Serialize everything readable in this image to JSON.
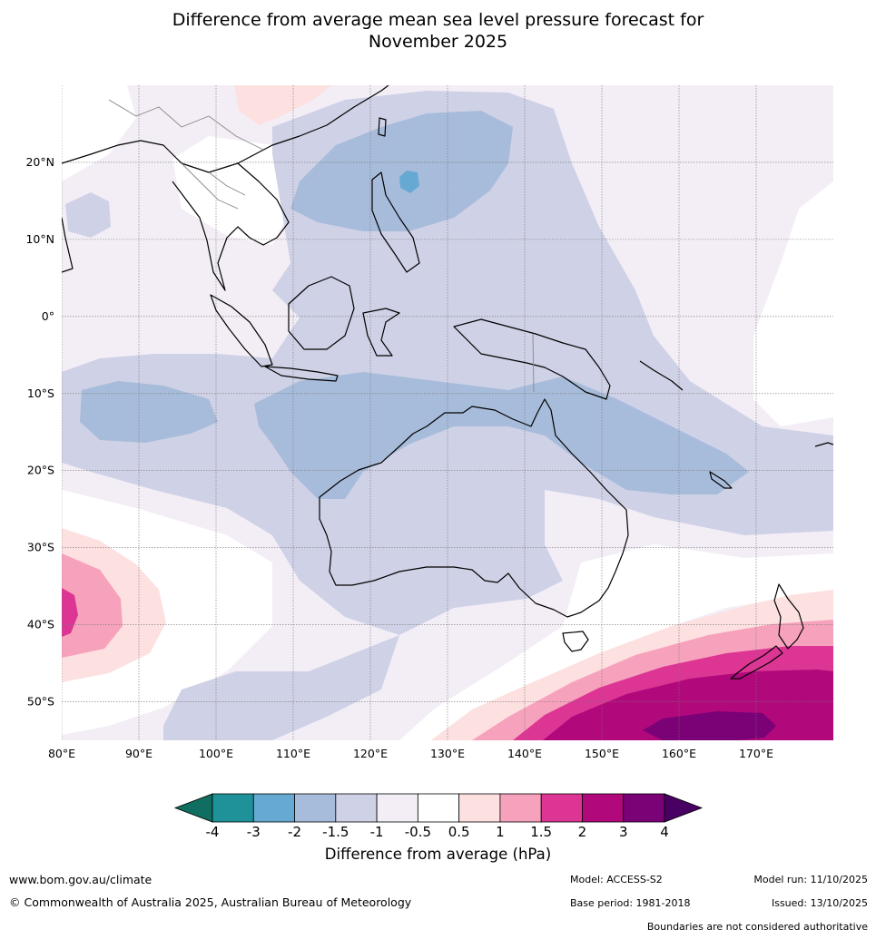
{
  "title_line1": "Difference from average mean sea level pressure forecast for",
  "title_line2": "November 2025",
  "axes": {
    "lat_labels": [
      "20°N",
      "10°N",
      "0°",
      "10°S",
      "20°S",
      "30°S",
      "40°S",
      "50°S"
    ],
    "lat_values": [
      20,
      10,
      0,
      -10,
      -20,
      -30,
      -40,
      -50
    ],
    "lon_labels": [
      "80°E",
      "90°E",
      "100°E",
      "110°E",
      "120°E",
      "130°E",
      "140°E",
      "150°E",
      "160°E",
      "170°E"
    ],
    "lon_values": [
      80,
      90,
      100,
      110,
      120,
      130,
      140,
      150,
      160,
      170
    ],
    "lon_range": [
      80,
      180
    ],
    "lat_range": [
      -55,
      30
    ]
  },
  "colorbar": {
    "ticks": [
      "-4",
      "-3",
      "-2",
      "-1.5",
      "-1",
      "-0.5",
      "0.5",
      "1",
      "1.5",
      "2",
      "3",
      "4"
    ],
    "colors": [
      "#0f6e5f",
      "#1f9198",
      "#66aad3",
      "#a7bcda",
      "#cfd1e6",
      "#f3eef6",
      "#ffffff",
      "#fde0e0",
      "#f7a2bc",
      "#dd3594",
      "#b1087c",
      "#7a0176",
      "#480062"
    ],
    "label": "Difference from average (hPa)"
  },
  "footer": {
    "website": "www.bom.gov.au/climate",
    "copyright": "© Commonwealth of Australia 2025, Australian Bureau of Meteorology",
    "model": "Model: ACCESS-S2",
    "base_period": "Base period: 1981-2018",
    "model_run": "Model run: 11/10/2025",
    "issued": "Issued: 13/10/2025",
    "boundaries_note": "Boundaries are not considered authoritative"
  }
}
